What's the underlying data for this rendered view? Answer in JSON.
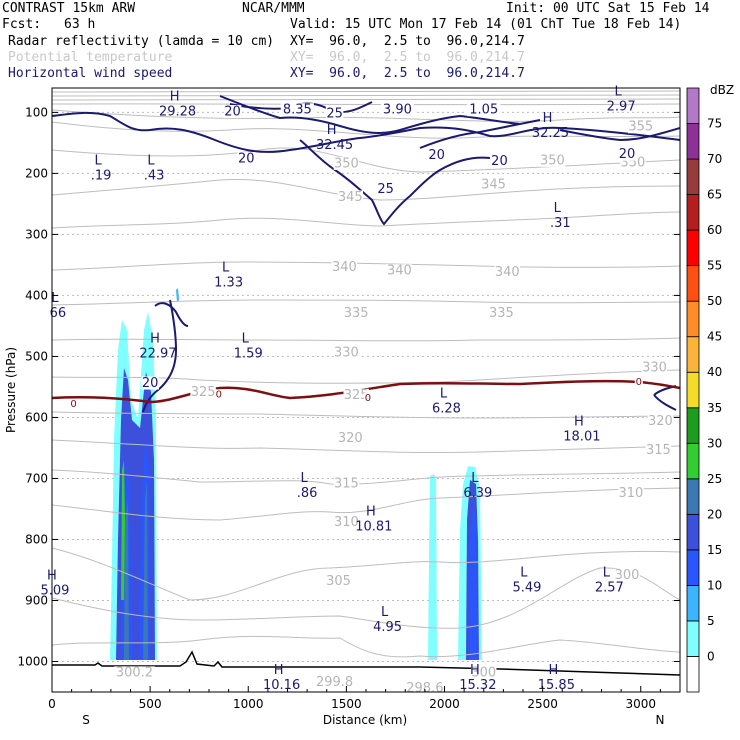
{
  "header": {
    "model": "CONTRAST 15km ARW",
    "fcst_label": "Fcst:",
    "fcst_value": "63 h",
    "center": "NCAR/MMM",
    "init": "Init: 00 UTC Sat 15 Feb 14",
    "valid": "Valid: 15 UTC Mon 17 Feb 14 (01 ChT Tue 18 Feb 14)",
    "fields": [
      {
        "name": "Radar reflectivity (lamda = 10 cm)",
        "xy": "XY=  96.0,  2.5 to  96.0,214.7",
        "color": "#000000"
      },
      {
        "name": "Potential temperature",
        "xy": "XY=  96.0,  2.5 to  96.0,214.7",
        "color": "#c8c8c8"
      },
      {
        "name": "Horizontal wind speed",
        "xy": "XY=  96.0,  2.5 to  96.0,214.7",
        "color": "#1a1a6e"
      }
    ]
  },
  "chart_data": {
    "type": "cross-section",
    "xlabel": "Distance (km)",
    "ylabel": "Pressure (hPa)",
    "xlim": [
      0,
      3200
    ],
    "ylim": [
      1050,
      60
    ],
    "x_ticks": [
      0,
      500,
      1000,
      1500,
      2000,
      2500,
      3000
    ],
    "y_ticks": [
      100,
      200,
      300,
      400,
      500,
      600,
      700,
      800,
      900,
      1000
    ],
    "endpoints": {
      "left": "S",
      "right": "N"
    },
    "colorbar": {
      "unit": "dBZ",
      "levels": [
        0,
        5,
        10,
        15,
        20,
        25,
        30,
        35,
        40,
        45,
        50,
        55,
        60,
        65,
        70,
        75
      ],
      "colors": [
        "#ffffff",
        "#7fffff",
        "#3cb4ff",
        "#2a55ff",
        "#3c50dc",
        "#3c78b4",
        "#33cc33",
        "#1e9c1e",
        "#f5dc28",
        "#fab43c",
        "#ff8c28",
        "#ff5014",
        "#ff0000",
        "#b41e1e",
        "#963c3c",
        "#8c3296",
        "#b478c8"
      ]
    },
    "theta_labels": [
      {
        "t": "355",
        "x": 3000,
        "p": 130
      },
      {
        "t": "350",
        "x": 2550,
        "p": 185
      },
      {
        "t": "350",
        "x": 2960,
        "p": 189
      },
      {
        "t": "350",
        "x": 1500,
        "p": 190
      },
      {
        "t": "345",
        "x": 1520,
        "p": 245
      },
      {
        "t": "345",
        "x": 2250,
        "p": 225
      },
      {
        "t": "340",
        "x": 1490,
        "p": 360
      },
      {
        "t": "340",
        "x": 1770,
        "p": 366
      },
      {
        "t": "340",
        "x": 2320,
        "p": 368
      },
      {
        "t": "335",
        "x": 1550,
        "p": 435
      },
      {
        "t": "335",
        "x": 2290,
        "p": 435
      },
      {
        "t": "330",
        "x": 1500,
        "p": 500
      },
      {
        "t": "330",
        "x": 3070,
        "p": 525
      },
      {
        "t": "325",
        "x": 770,
        "p": 565
      },
      {
        "t": "325",
        "x": 1550,
        "p": 570
      },
      {
        "t": "320",
        "x": 1520,
        "p": 640
      },
      {
        "t": "320",
        "x": 3100,
        "p": 612
      },
      {
        "t": "315",
        "x": 1500,
        "p": 715
      },
      {
        "t": "315",
        "x": 3090,
        "p": 660
      },
      {
        "t": "310",
        "x": 1500,
        "p": 778
      },
      {
        "t": "310",
        "x": 2950,
        "p": 730
      },
      {
        "t": "305",
        "x": 1460,
        "p": 875
      },
      {
        "t": "300",
        "x": 2930,
        "p": 865
      },
      {
        "t": "299.8",
        "x": 1440,
        "p": 1040
      },
      {
        "t": "298.6",
        "x": 1900,
        "p": 1050
      },
      {
        "t": "300",
        "x": 2200,
        "p": 1025
      },
      {
        "t": "300.2",
        "x": 420,
        "p": 1025
      }
    ],
    "wind_labels": [
      {
        "t": "20",
        "x": 920,
        "p": 105
      },
      {
        "t": "8.35",
        "x": 1250,
        "p": 102
      },
      {
        "t": "25",
        "x": 1440,
        "p": 108
      },
      {
        "t": "3.90",
        "x": 1760,
        "p": 102
      },
      {
        "t": "1.05",
        "x": 2200,
        "p": 102
      },
      {
        "t": "20",
        "x": 990,
        "p": 182
      },
      {
        "t": "20",
        "x": 1960,
        "p": 176
      },
      {
        "t": "20",
        "x": 2280,
        "p": 186
      },
      {
        "t": "20",
        "x": 2930,
        "p": 175
      },
      {
        "t": "25",
        "x": 1700,
        "p": 232
      },
      {
        "t": "20",
        "x": 500,
        "p": 550
      }
    ],
    "zero_labels": [
      {
        "t": "0",
        "x": 110,
        "p": 583
      },
      {
        "t": "0",
        "x": 850,
        "p": 567
      },
      {
        "t": "0",
        "x": 1610,
        "p": 573
      },
      {
        "t": "0",
        "x": 2990,
        "p": 547
      }
    ],
    "extrema": [
      {
        "k": "H",
        "v": "29.28",
        "x": 640,
        "p": 105
      },
      {
        "k": "L",
        "v": "2.97",
        "x": 2900,
        "p": 97
      },
      {
        "k": "H",
        "v": "32.45",
        "x": 1440,
        "p": 160
      },
      {
        "k": "H",
        "v": "32.25",
        "x": 2540,
        "p": 140
      },
      {
        "k": "L",
        "v": ".19",
        "x": 250,
        "p": 210
      },
      {
        "k": "L",
        "v": ".43",
        "x": 520,
        "p": 210
      },
      {
        "k": "L",
        "v": ".31",
        "x": 2590,
        "p": 288
      },
      {
        "k": "L",
        "v": "1.33",
        "x": 900,
        "p": 385
      },
      {
        "k": "L",
        "v": "66",
        "x": 30,
        "p": 435
      },
      {
        "k": "H",
        "v": "22.97",
        "x": 540,
        "p": 502
      },
      {
        "k": "L",
        "v": "1.59",
        "x": 1000,
        "p": 502
      },
      {
        "k": "L",
        "v": "6.28",
        "x": 2010,
        "p": 592
      },
      {
        "k": "H",
        "v": "18.01",
        "x": 2700,
        "p": 638
      },
      {
        "k": "L",
        "v": ".86",
        "x": 1300,
        "p": 730
      },
      {
        "k": "L",
        "v": "6.39",
        "x": 2170,
        "p": 730
      },
      {
        "k": "H",
        "v": "10.81",
        "x": 1640,
        "p": 785
      },
      {
        "k": "H",
        "v": "5.09",
        "x": 15,
        "p": 890
      },
      {
        "k": "L",
        "v": "5.49",
        "x": 2420,
        "p": 885
      },
      {
        "k": "L",
        "v": "2.57",
        "x": 2840,
        "p": 885
      },
      {
        "k": "L",
        "v": "4.95",
        "x": 1710,
        "p": 950
      },
      {
        "k": "H",
        "v": "10.16",
        "x": 1170,
        "p": 1045
      },
      {
        "k": "H",
        "v": "15.32",
        "x": 2170,
        "p": 1045
      },
      {
        "k": "H",
        "v": "15.85",
        "x": 2570,
        "p": 1045
      }
    ]
  }
}
